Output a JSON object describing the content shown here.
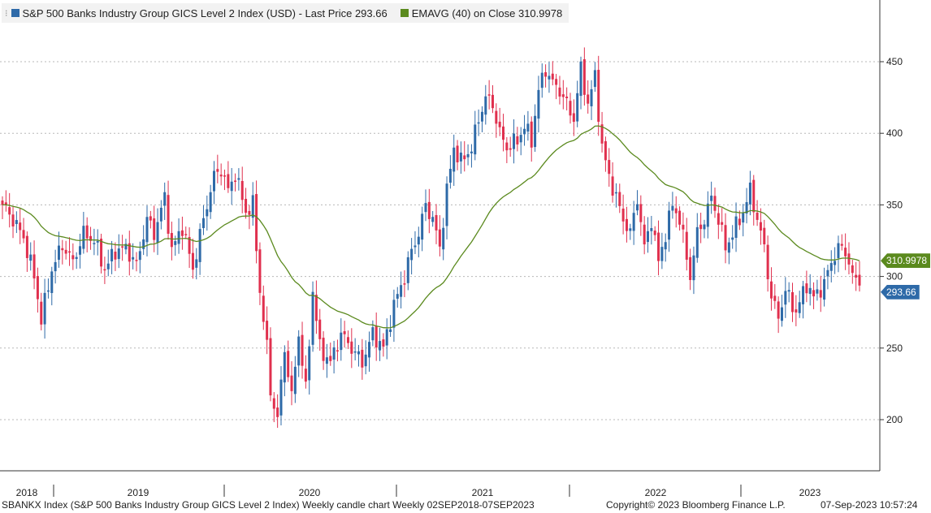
{
  "legend": {
    "grip_icon": "legend-grip-icon",
    "series1_label": "S&P 500 Banks Industry Group GICS Level 2 Index (USD) - Last Price 293.66",
    "series1_color": "#2e6aa8",
    "series2_label": "EMAVG (40)  on Close 310.9978",
    "series2_color": "#5b8a1e"
  },
  "price_tags": {
    "ema": {
      "text": "310.9978",
      "color": "#5b8a1e"
    },
    "last": {
      "text": "293.66",
      "color": "#2e6aa8"
    }
  },
  "footer": {
    "left": "SBANKX Index (S&P 500 Banks Industry Group GICS Level 2 Index) Weekly candle chart  Weekly 02SEP2018-07SEP2023",
    "copyright": "Copyright© 2023 Bloomberg Finance L.P.",
    "timestamp": "07-Sep-2023 10:57:24"
  },
  "chart_data": {
    "type": "candlestick",
    "frequency": "weekly",
    "yticks": [
      200,
      250,
      300,
      350,
      400,
      450
    ],
    "ylim": [
      165,
      480
    ],
    "year_labels": [
      "2018",
      "2019",
      "2020",
      "2021",
      "2022",
      "2023"
    ],
    "up_color": "#2e6aa8",
    "down_color": "#e0304e",
    "ema_color": "#5b8a1e",
    "gridlines": "dotted-horizontal",
    "last_price": 293.66,
    "ema_last": 310.9978,
    "close_anchors": [
      [
        0,
        350
      ],
      [
        3,
        340
      ],
      [
        6,
        327
      ],
      [
        9,
        300
      ],
      [
        11,
        270
      ],
      [
        14,
        305
      ],
      [
        17,
        322
      ],
      [
        20,
        310
      ],
      [
        23,
        330
      ],
      [
        26,
        325
      ],
      [
        29,
        305
      ],
      [
        32,
        318
      ],
      [
        35,
        320
      ],
      [
        38,
        308
      ],
      [
        41,
        340
      ],
      [
        43,
        330
      ],
      [
        46,
        355
      ],
      [
        48,
        318
      ],
      [
        51,
        335
      ],
      [
        54,
        305
      ],
      [
        57,
        340
      ],
      [
        60,
        370
      ],
      [
        62,
        375
      ],
      [
        64,
        360
      ],
      [
        66,
        372
      ],
      [
        69,
        345
      ],
      [
        71,
        350
      ],
      [
        73,
        290
      ],
      [
        75,
        250
      ],
      [
        76,
        220
      ],
      [
        78,
        200
      ],
      [
        80,
        250
      ],
      [
        82,
        215
      ],
      [
        84,
        260
      ],
      [
        86,
        220
      ],
      [
        88,
        290
      ],
      [
        90,
        250
      ],
      [
        93,
        240
      ],
      [
        96,
        260
      ],
      [
        99,
        250
      ],
      [
        102,
        240
      ],
      [
        105,
        260
      ],
      [
        108,
        250
      ],
      [
        111,
        280
      ],
      [
        114,
        300
      ],
      [
        116,
        318
      ],
      [
        118,
        330
      ],
      [
        120,
        350
      ],
      [
        122,
        340
      ],
      [
        124,
        320
      ],
      [
        126,
        360
      ],
      [
        128,
        390
      ],
      [
        130,
        380
      ],
      [
        133,
        390
      ],
      [
        135,
        410
      ],
      [
        137,
        425
      ],
      [
        139,
        420
      ],
      [
        141,
        400
      ],
      [
        143,
        390
      ],
      [
        146,
        395
      ],
      [
        148,
        405
      ],
      [
        150,
        395
      ],
      [
        152,
        430
      ],
      [
        154,
        445
      ],
      [
        156,
        435
      ],
      [
        158,
        430
      ],
      [
        160,
        420
      ],
      [
        162,
        410
      ],
      [
        164,
        445
      ],
      [
        166,
        420
      ],
      [
        168,
        440
      ],
      [
        170,
        390
      ],
      [
        172,
        370
      ],
      [
        174,
        355
      ],
      [
        176,
        340
      ],
      [
        178,
        330
      ],
      [
        180,
        355
      ],
      [
        182,
        320
      ],
      [
        184,
        340
      ],
      [
        186,
        310
      ],
      [
        188,
        330
      ],
      [
        190,
        350
      ],
      [
        192,
        340
      ],
      [
        195,
        300
      ],
      [
        197,
        330
      ],
      [
        199,
        340
      ],
      [
        201,
        355
      ],
      [
        203,
        340
      ],
      [
        205,
        320
      ],
      [
        207,
        330
      ],
      [
        210,
        345
      ],
      [
        212,
        360
      ],
      [
        214,
        340
      ],
      [
        216,
        320
      ],
      [
        218,
        285
      ],
      [
        220,
        272
      ],
      [
        222,
        290
      ],
      [
        225,
        275
      ],
      [
        228,
        295
      ],
      [
        230,
        285
      ],
      [
        233,
        295
      ],
      [
        235,
        310
      ],
      [
        237,
        320
      ],
      [
        239,
        318
      ],
      [
        241,
        300
      ],
      [
        243,
        293.66
      ]
    ]
  }
}
